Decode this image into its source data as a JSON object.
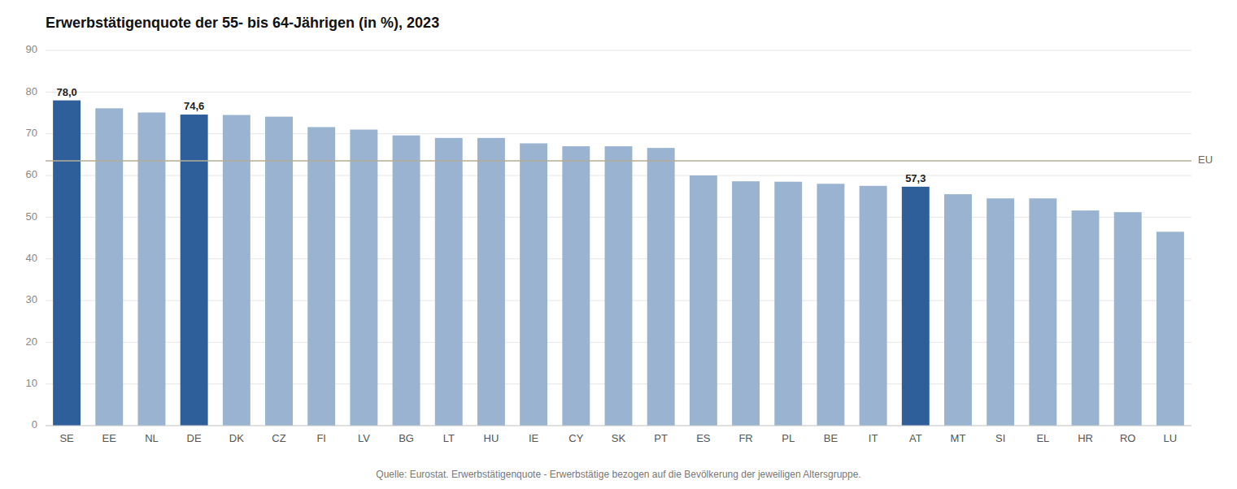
{
  "chart_data": {
    "type": "bar",
    "title": "Erwerbstätigenquote der 55- bis 64-Jährigen (in %), 2023",
    "categories": [
      "SE",
      "EE",
      "NL",
      "DE",
      "DK",
      "CZ",
      "FI",
      "LV",
      "BG",
      "LT",
      "HU",
      "IE",
      "CY",
      "SK",
      "PT",
      "ES",
      "FR",
      "PL",
      "BE",
      "IT",
      "AT",
      "MT",
      "SI",
      "EL",
      "HR",
      "RO",
      "LU"
    ],
    "values": [
      78.0,
      76.1,
      75.1,
      74.6,
      74.5,
      74.1,
      71.6,
      71.0,
      69.6,
      69.0,
      69.0,
      67.7,
      67.0,
      67.0,
      66.6,
      60.0,
      58.6,
      58.5,
      58.0,
      57.5,
      57.3,
      55.5,
      54.5,
      54.5,
      51.6,
      51.2,
      46.5
    ],
    "value_labels": [
      "78,0",
      null,
      null,
      "74,6",
      null,
      null,
      null,
      null,
      null,
      null,
      null,
      null,
      null,
      null,
      null,
      null,
      null,
      null,
      null,
      null,
      "57,3",
      null,
      null,
      null,
      null,
      null,
      null
    ],
    "colors": [
      "#2e5f9b",
      "#9ab3d0",
      "#9ab3d0",
      "#2e5f9b",
      "#9ab3d0",
      "#9ab3d0",
      "#9ab3d0",
      "#9ab3d0",
      "#9ab3d0",
      "#9ab3d0",
      "#9ab3d0",
      "#9ab3d0",
      "#9ab3d0",
      "#9ab3d0",
      "#9ab3d0",
      "#9ab3d0",
      "#9ab3d0",
      "#9ab3d0",
      "#9ab3d0",
      "#9ab3d0",
      "#2e5f9b",
      "#9ab3d0",
      "#9ab3d0",
      "#9ab3d0",
      "#9ab3d0",
      "#9ab3d0",
      "#9ab3d0"
    ],
    "reference_lines": [
      {
        "value": 63.5,
        "label": "EU",
        "color": "#b5ad96"
      }
    ],
    "ylim": [
      0,
      90
    ],
    "yticks": [
      0,
      10,
      20,
      30,
      40,
      50,
      60,
      70,
      80,
      90
    ],
    "grid": true,
    "source": "Quelle: Eurostat. Erwerbstätigenquote - Erwerbstätige bezogen auf die Bevölkerung der jeweiligen Altersgruppe."
  }
}
